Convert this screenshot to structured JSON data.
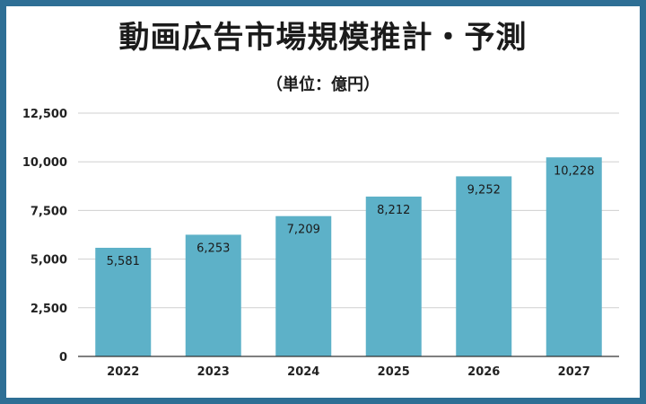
{
  "chart_data": {
    "type": "bar",
    "title": "動画広告市場規模推計・予測",
    "subtitle": "（単位：億円）",
    "categories": [
      "2022",
      "2023",
      "2024",
      "2025",
      "2026",
      "2027"
    ],
    "values": [
      5581,
      6253,
      7209,
      8212,
      9252,
      10228
    ],
    "data_labels": [
      "5,581",
      "6,253",
      "7,209",
      "8,212",
      "9,252",
      "10,228"
    ],
    "yticks": [
      "0",
      "2,500",
      "5,000",
      "7,500",
      "10,000",
      "12,500"
    ],
    "ytick_values": [
      0,
      2500,
      5000,
      7500,
      10000,
      12500
    ],
    "ylim": [
      0,
      12500
    ],
    "xlabel": "",
    "ylabel": "",
    "grid": true,
    "bar_color": "#5db1c8",
    "frame_color": "#2e6f95"
  }
}
